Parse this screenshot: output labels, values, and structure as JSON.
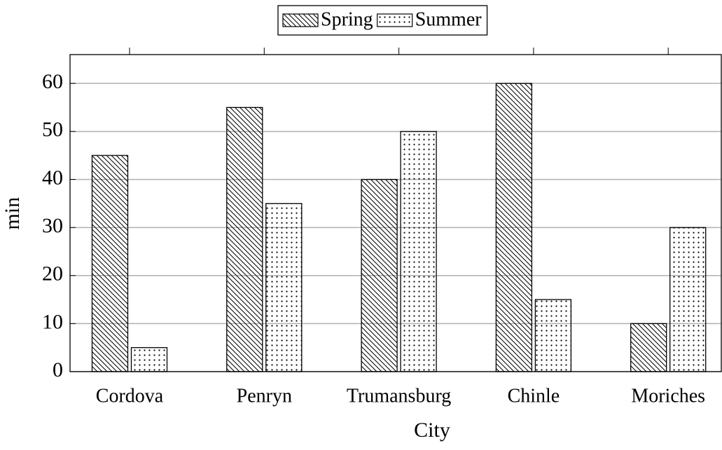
{
  "chart_data": {
    "type": "bar",
    "x_label": "City",
    "y_label": "min",
    "categories": [
      "Cordova",
      "Penryn",
      "Trumansburg",
      "Chinle",
      "Moriches"
    ],
    "series": [
      {
        "name": "Spring",
        "color": "#000000",
        "pattern": "north west lines",
        "values": [
          45,
          55,
          40,
          60,
          10
        ]
      },
      {
        "name": "Summer",
        "color": "#000000",
        "pattern": "dots",
        "values": [
          5,
          35,
          50,
          15,
          30
        ]
      }
    ],
    "ylim": [
      0,
      66
    ],
    "yticks": [
      0,
      10,
      20,
      30,
      40,
      50,
      60
    ],
    "grid": true,
    "legend": "top"
  }
}
